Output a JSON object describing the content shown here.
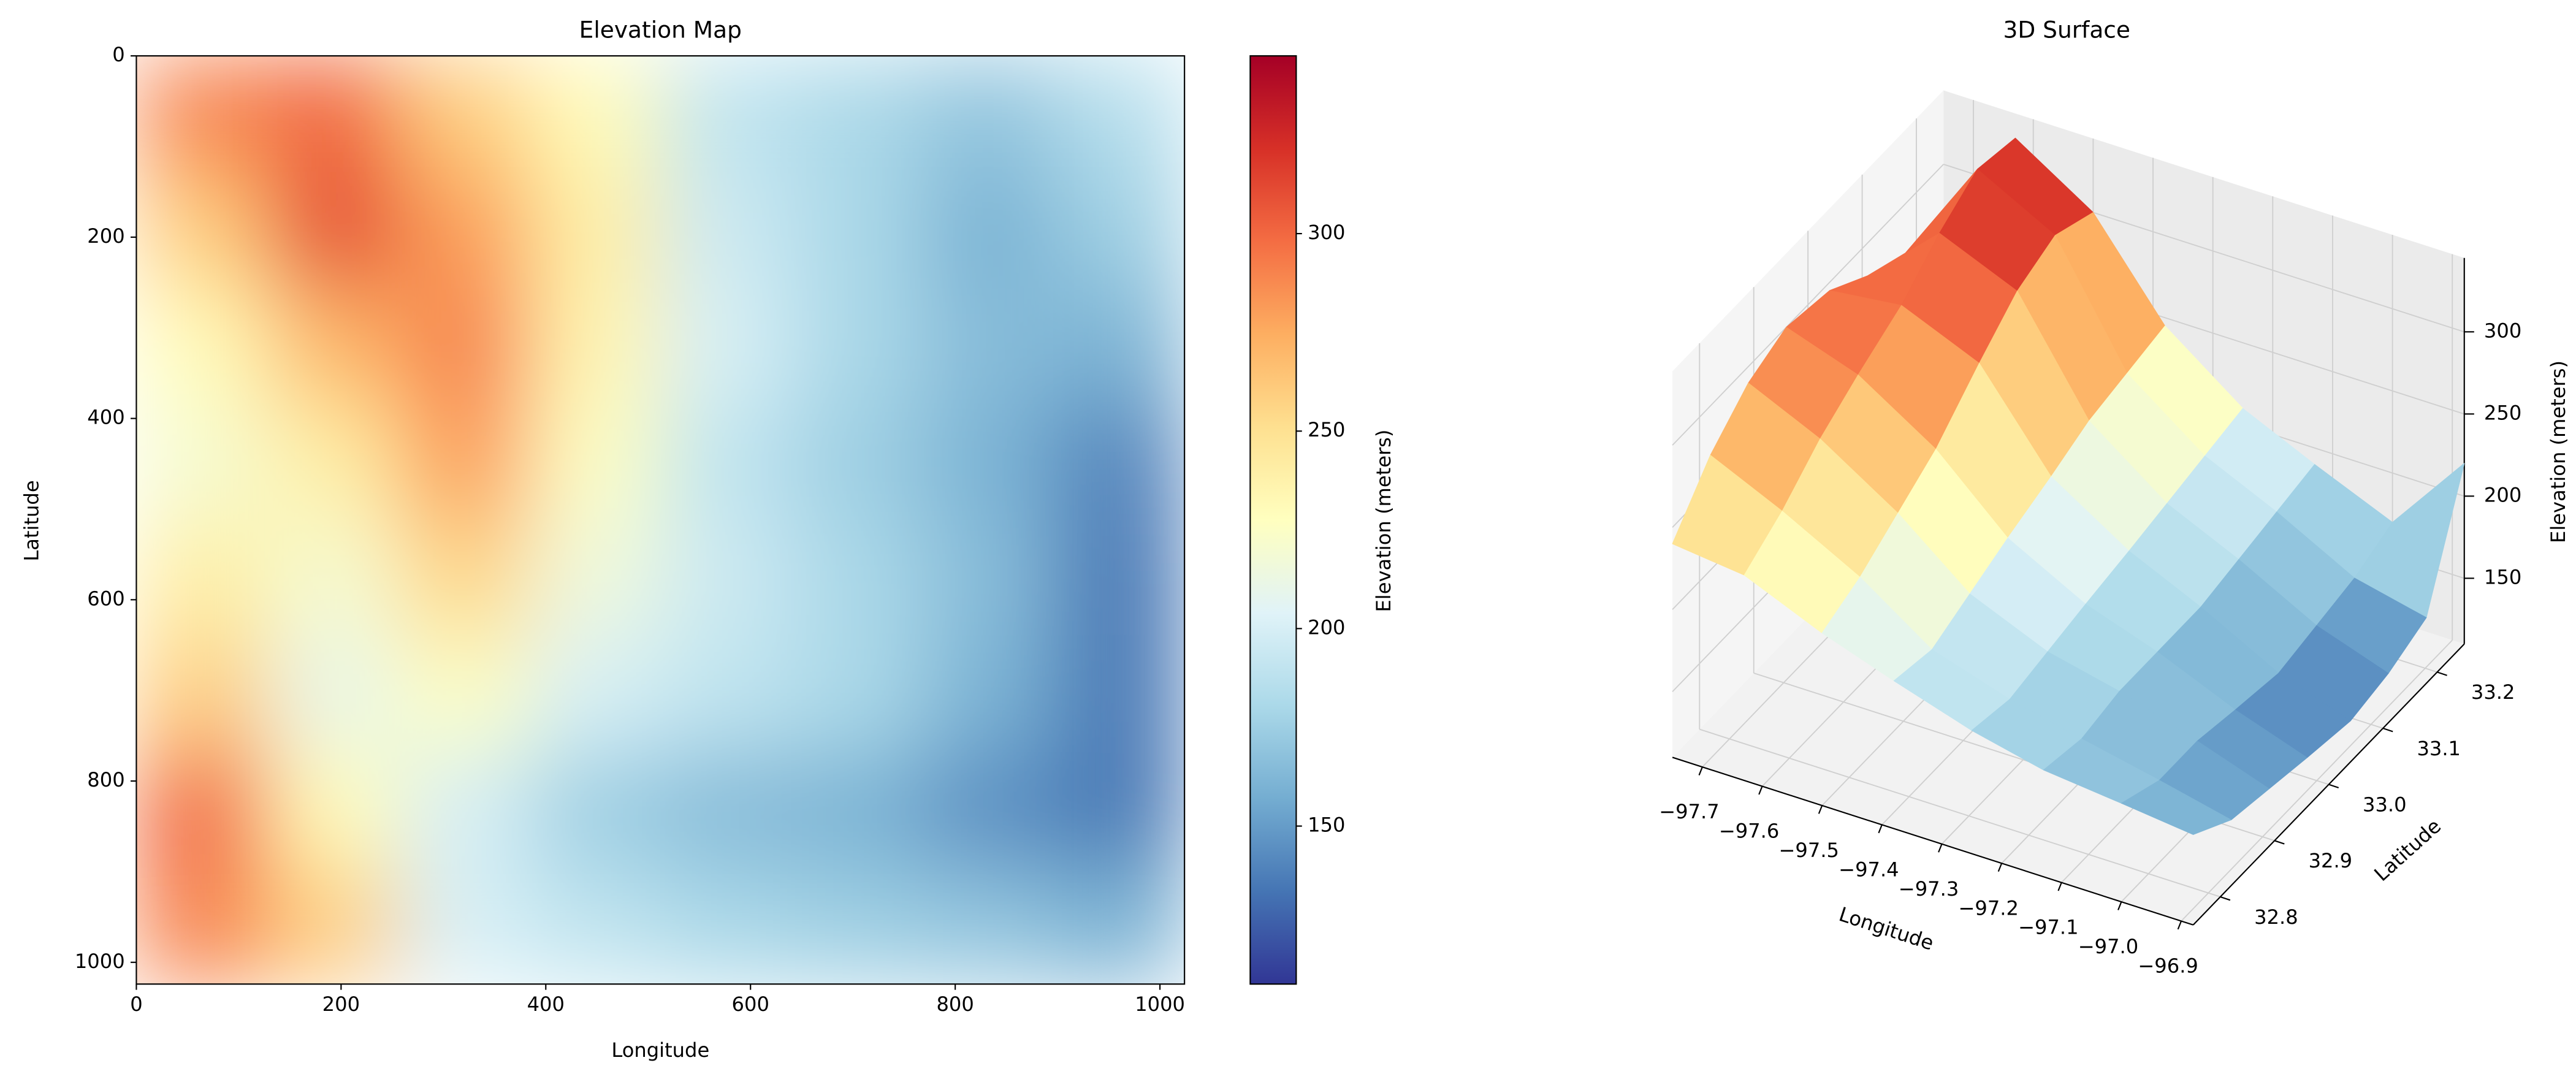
{
  "chart_data": [
    {
      "type": "heatmap",
      "title": "Elevation Map",
      "xlabel": "Longitude",
      "ylabel": "Latitude",
      "xlim": [
        0,
        1024
      ],
      "ylim": [
        1024,
        0
      ],
      "xticks": [
        0,
        200,
        400,
        600,
        800,
        1000
      ],
      "yticks": [
        0,
        200,
        400,
        600,
        800,
        1000
      ],
      "values": [
        [
          290,
          300,
          260,
          230,
          190,
          180,
          170,
          185
        ],
        [
          260,
          310,
          280,
          240,
          195,
          180,
          160,
          175
        ],
        [
          230,
          270,
          290,
          235,
          200,
          180,
          165,
          160
        ],
        [
          220,
          240,
          280,
          225,
          190,
          175,
          160,
          140
        ],
        [
          240,
          220,
          255,
          215,
          195,
          180,
          165,
          135
        ],
        [
          260,
          210,
          225,
          200,
          190,
          180,
          160,
          135
        ],
        [
          300,
          230,
          200,
          175,
          165,
          160,
          145,
          135
        ],
        [
          290,
          260,
          200,
          190,
          180,
          175,
          170,
          160
        ]
      ],
      "colormap": [
        "#313695",
        "#4575b4",
        "#74add1",
        "#abd9e9",
        "#e0f3f8",
        "#ffffbf",
        "#fee090",
        "#fdae61",
        "#f46d43",
        "#d73027",
        "#a50026"
      ],
      "colorbar": {
        "label": "Elevation (meters)",
        "clim": [
          110,
          345
        ],
        "ticks": [
          150,
          200,
          250,
          300
        ]
      }
    },
    {
      "type": "surface3d",
      "title": "3D Surface",
      "xlabel": "Longitude",
      "ylabel": "Latitude",
      "zlabel": "Elevation (meters)",
      "xlim": [
        -97.75,
        -96.88
      ],
      "ylim": [
        32.75,
        33.25
      ],
      "zlim": [
        110,
        345
      ],
      "xticks": [
        {
          "value": -97.7,
          "label": "−97.7"
        },
        {
          "value": -97.6,
          "label": "−97.6"
        },
        {
          "value": -97.5,
          "label": "−97.5"
        },
        {
          "value": -97.4,
          "label": "−97.4"
        },
        {
          "value": -97.3,
          "label": "−97.3"
        },
        {
          "value": -97.2,
          "label": "−97.2"
        },
        {
          "value": -97.1,
          "label": "−97.1"
        },
        {
          "value": -97.0,
          "label": "−97.0"
        },
        {
          "value": -96.9,
          "label": "−96.9"
        }
      ],
      "yticks": [
        32.8,
        32.9,
        {
          "value": 33.0,
          "label": "33.0"
        },
        33.1,
        33.2
      ],
      "zticks": [
        150,
        200,
        250,
        300
      ],
      "x": [
        -97.75,
        -97.63,
        -97.5,
        -97.38,
        -97.25,
        -97.13,
        -97.0,
        -96.88
      ],
      "y": [
        32.75,
        32.82,
        32.89,
        32.96,
        33.04,
        33.11,
        33.18,
        33.25
      ],
      "z": [
        [
          240,
          235,
          215,
          200,
          185,
          175,
          170,
          165
        ],
        [
          270,
          250,
          225,
          195,
          180,
          170,
          160,
          150
        ],
        [
          290,
          270,
          240,
          205,
          185,
          175,
          160,
          145
        ],
        [
          300,
          285,
          255,
          215,
          190,
          175,
          155,
          140
        ],
        [
          295,
          300,
          280,
          225,
          195,
          175,
          150,
          135
        ],
        [
          280,
          320,
          300,
          235,
          200,
          180,
          155,
          140
        ],
        [
          270,
          335,
          310,
          240,
          205,
          185,
          160,
          150
        ],
        [
          260,
          330,
          300,
          245,
          210,
          190,
          170,
          220
        ]
      ],
      "colormap": [
        "#313695",
        "#4575b4",
        "#74add1",
        "#abd9e9",
        "#e0f3f8",
        "#ffffbf",
        "#fee090",
        "#fdae61",
        "#f46d43",
        "#d73027",
        "#a50026"
      ]
    }
  ]
}
